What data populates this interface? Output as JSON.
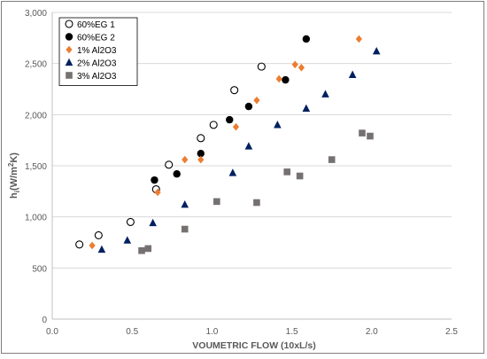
{
  "chart_data": {
    "type": "scatter",
    "title": "",
    "xlabel": "VOUMETRIC FLOW (10xL/s)",
    "ylabel_main": "h",
    "ylabel_sub": "i",
    "ylabel_unit_open": "(W/m",
    "ylabel_unit_sup": "2",
    "ylabel_unit_close": "K)",
    "xlim": [
      0.0,
      2.5
    ],
    "ylim": [
      0,
      3000
    ],
    "x_ticks": [
      "0.0",
      "0.5",
      "1.0",
      "1.5",
      "2.0",
      "2.5"
    ],
    "y_ticks": [
      "0",
      "500",
      "1,000",
      "1,500",
      "2,000",
      "2,500",
      "3,000"
    ],
    "grid": "horizontal",
    "legend_position": "top-left",
    "series": [
      {
        "name": "60%EG 1",
        "marker": "circle-open",
        "color": "#000000",
        "x": [
          0.17,
          0.29,
          0.49,
          0.65,
          0.73,
          0.93,
          1.01,
          1.14,
          1.31
        ],
        "y": [
          730,
          820,
          950,
          1270,
          1510,
          1770,
          1900,
          2240,
          2470
        ]
      },
      {
        "name": "60%EG 2",
        "marker": "circle",
        "color": "#000000",
        "x": [
          0.64,
          0.78,
          0.93,
          1.11,
          1.23,
          1.46,
          1.59
        ],
        "y": [
          1360,
          1420,
          1620,
          1950,
          2080,
          2340,
          2740
        ]
      },
      {
        "name": "1% Al2O3",
        "marker": "diamond",
        "color": "#ED7D31",
        "x": [
          0.25,
          0.66,
          0.83,
          0.93,
          1.15,
          1.28,
          1.42,
          1.52,
          1.56,
          1.92
        ],
        "y": [
          720,
          1240,
          1560,
          1560,
          1880,
          2140,
          2350,
          2490,
          2460,
          2740
        ]
      },
      {
        "name": "2% Al2O3",
        "marker": "triangle",
        "color": "#002060",
        "x": [
          0.31,
          0.47,
          0.63,
          0.83,
          1.13,
          1.23,
          1.41,
          1.59,
          1.71,
          1.88,
          2.03
        ],
        "y": [
          680,
          770,
          940,
          1120,
          1430,
          1690,
          1900,
          2060,
          2200,
          2390,
          2620
        ]
      },
      {
        "name": "3% Al2O3",
        "marker": "square",
        "color": "#767171",
        "x": [
          0.56,
          0.6,
          0.83,
          1.03,
          1.28,
          1.47,
          1.55,
          1.75,
          1.94,
          1.99
        ],
        "y": [
          670,
          690,
          880,
          1150,
          1140,
          1440,
          1400,
          1560,
          1820,
          1790
        ]
      }
    ]
  }
}
